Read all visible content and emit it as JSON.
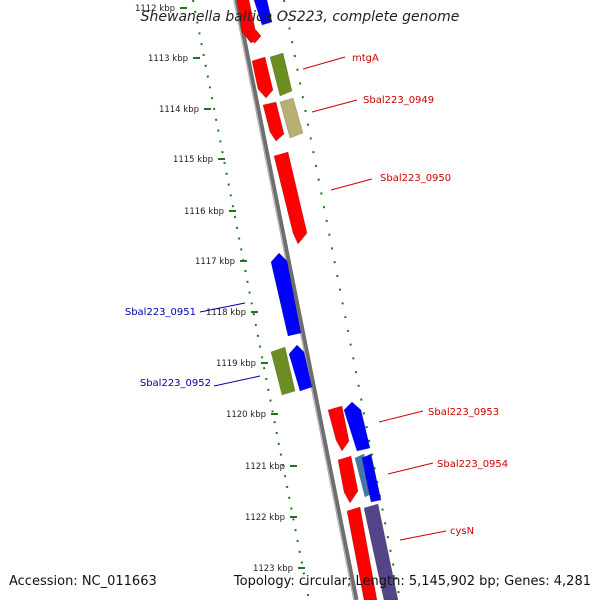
{
  "title": "Shewanella baltica OS223, complete genome",
  "accession": "Accession: NC_011663",
  "topology": "Topology: circular; Length: 5,145,902 bp; Genes: 4,281",
  "colors": {
    "forward_cds": "#ff0000",
    "reverse_cds": "#0000ff",
    "other_feature": "#6b8e23",
    "backbone": "#808080",
    "ruler": "#008000",
    "label_forward": "#cc0000",
    "label_reverse": "#0000aa"
  },
  "ruler_ticks": [
    "1112 kbp",
    "1113 kbp",
    "1114 kbp",
    "1115 kbp",
    "1116 kbp",
    "1117 kbp",
    "1118 kbp",
    "1119 kbp",
    "1120 kbp",
    "1121 kbp",
    "1122 kbp",
    "1123 kbp"
  ],
  "gene_labels": [
    {
      "text": "mtgA",
      "strand": "forward"
    },
    {
      "text": "Sbal223_0949",
      "strand": "forward"
    },
    {
      "text": "Sbal223_0950",
      "strand": "forward"
    },
    {
      "text": "Sbal223_0951",
      "strand": "reverse"
    },
    {
      "text": "Sbal223_0952",
      "strand": "reverse"
    },
    {
      "text": "Sbal223_0953",
      "strand": "forward"
    },
    {
      "text": "Sbal223_0954",
      "strand": "forward"
    },
    {
      "text": "cysN",
      "strand": "forward"
    }
  ]
}
